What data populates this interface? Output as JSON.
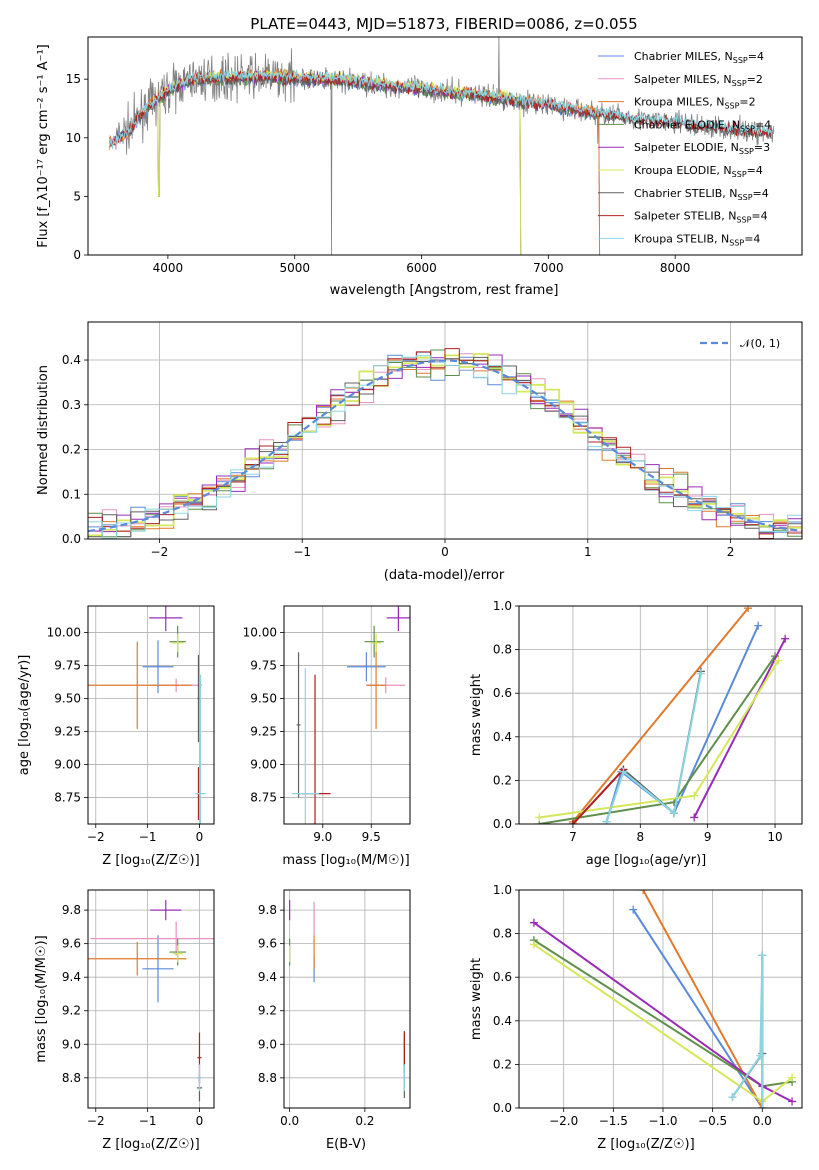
{
  "colors": {
    "Chabrier MILES": "#5b8ad8",
    "Salpeter MILES": "#e891c0",
    "Kroupa MILES": "#e07a2c",
    "Chabrier ELODIE": "#5f8f4a",
    "Salpeter ELODIE": "#9a2bb8",
    "Kroupa ELODIE": "#d4e85a",
    "Chabrier STELIB": "#606060",
    "Salpeter STELIB": "#b02020",
    "Kroupa STELIB": "#8ad6e0",
    "normal": "#5b8ad8"
  },
  "chart_data": [
    {
      "id": "spectrum",
      "type": "line",
      "title": "PLATE=0443, MJD=51873, FIBERID=0086, z=0.055",
      "xlabel": "wavelength [Angstrom, rest frame]",
      "ylabel": "Flux [f_λ10⁻¹⁷ erg cm⁻² s⁻¹ A⁻¹]",
      "xlim": [
        3370,
        9000
      ],
      "ylim": [
        0,
        18.6
      ],
      "xticks": [
        "4000",
        "5000",
        "6000",
        "7000",
        "8000"
      ],
      "yticks": [
        "0",
        "5",
        "10",
        "15"
      ],
      "grid": false,
      "legend_position": "top-right",
      "legend": [
        {
          "name": "Chabrier MILES, N_SSP=4",
          "text": "Chabrier MILES, N",
          "sub": "SSP",
          "rest": "=4"
        },
        {
          "name": "Salpeter MILES, N_SSP=2",
          "text": "Salpeter MILES, N",
          "sub": "SSP",
          "rest": "=2"
        },
        {
          "name": "Kroupa MILES, N_SSP=2",
          "text": "Kroupa MILES, N",
          "sub": "SSP",
          "rest": "=2"
        },
        {
          "name": "Chabrier ELODIE, N_SSP=4",
          "text": "Chabrier ELODIE, N",
          "sub": "SSP",
          "rest": "=4"
        },
        {
          "name": "Salpeter ELODIE, N_SSP=3",
          "text": "Salpeter ELODIE, N",
          "sub": "SSP",
          "rest": "=3"
        },
        {
          "name": "Kroupa ELODIE, N_SSP=4",
          "text": "Kroupa ELODIE, N",
          "sub": "SSP",
          "rest": "=4"
        },
        {
          "name": "Chabrier STELIB, N_SSP=4",
          "text": "Chabrier STELIB, N",
          "sub": "SSP",
          "rest": "=4"
        },
        {
          "name": "Salpeter STELIB, N_SSP=4",
          "text": "Salpeter STELIB, N",
          "sub": "SSP",
          "rest": "=4"
        },
        {
          "name": "Kroupa STELIB, N_SSP=4",
          "text": "Kroupa STELIB, N",
          "sub": "SSP",
          "rest": "=4"
        }
      ],
      "continuum_wavelength": [
        3600,
        3700,
        3800,
        3900,
        4000,
        4100,
        4200,
        4400,
        4600,
        4800,
        5000,
        5200,
        5400,
        5600,
        5800,
        6000,
        6200,
        6400,
        6600,
        6800,
        7000,
        7200,
        7400,
        7600,
        7800,
        8000,
        8200,
        8400,
        8600,
        8800
      ],
      "continuum_flux": [
        9.9,
        10.8,
        12.2,
        13.2,
        14.0,
        14.6,
        15.0,
        15.1,
        15.2,
        15.2,
        15.1,
        15.0,
        14.9,
        14.6,
        14.4,
        14.2,
        13.9,
        13.7,
        13.4,
        13.1,
        12.8,
        12.4,
        12.1,
        11.8,
        11.5,
        11.3,
        11.0,
        10.8,
        10.6,
        10.4
      ],
      "model_ranges": {
        "Chabrier MILES": [
          3540,
          7410
        ],
        "Salpeter MILES": [
          3540,
          7410
        ],
        "Kroupa MILES": [
          3540,
          7410
        ],
        "Chabrier ELODIE": [
          3860,
          6800
        ],
        "Salpeter ELODIE": [
          3860,
          6800
        ],
        "Kroupa ELODIE": [
          3860,
          6800
        ],
        "Chabrier STELIB": [
          3540,
          8760
        ],
        "Salpeter STELIB": [
          3540,
          8760
        ],
        "Kroupa STELIB": [
          3540,
          8760
        ]
      }
    },
    {
      "id": "residuals",
      "type": "histogram",
      "xlabel": "(data-model)/error",
      "ylabel": "Normed distribution",
      "xlim": [
        -2.5,
        2.5
      ],
      "ylim": [
        0,
        0.485
      ],
      "xticks": [
        "−2",
        "−1",
        "0",
        "1",
        "2"
      ],
      "yticks": [
        "0.0",
        "0.1",
        "0.2",
        "0.3",
        "0.4"
      ],
      "grid": true,
      "legend_position": "top-right",
      "reference": {
        "name": "𝒩(0, 1)",
        "mean": 0,
        "sigma": 1
      }
    },
    {
      "id": "age-vs-Z",
      "type": "errorbar",
      "xlabel": "Z [log₁₀(Z/Z☉)]",
      "ylabel": "age  [log₁₀(age/yr)]",
      "xlim": [
        -2.15,
        0.28
      ],
      "ylim": [
        8.55,
        10.2
      ],
      "xticks": [
        "−2",
        "−1",
        "0"
      ],
      "yticks": [
        "8.75",
        "9.00",
        "9.25",
        "9.50",
        "9.75",
        "10.00"
      ],
      "grid": true,
      "points": [
        {
          "model": "Chabrier MILES",
          "x": -0.8,
          "xerr": 0.3,
          "y": 9.74,
          "yerr": 0.2
        },
        {
          "model": "Salpeter MILES",
          "x": -0.45,
          "xerr": 0.5,
          "y": 9.6,
          "yerr": 0.05
        },
        {
          "model": "Kroupa MILES",
          "x": -1.2,
          "xerr": 1.05,
          "y": 9.6,
          "yerr": 0.33
        },
        {
          "model": "Chabrier ELODIE",
          "x": -0.42,
          "xerr": 0.16,
          "y": 9.93,
          "yerr": 0.12
        },
        {
          "model": "Salpeter ELODIE",
          "x": -0.65,
          "xerr": 0.32,
          "y": 10.11,
          "yerr": 0.1
        },
        {
          "model": "Kroupa ELODIE",
          "x": -0.42,
          "xerr": 0.12,
          "y": 9.92,
          "yerr": 0.07
        },
        {
          "model": "Chabrier STELIB",
          "x": -0.02,
          "xerr": 0.02,
          "y": 9.5,
          "yerr": 0.33
        },
        {
          "model": "Salpeter STELIB",
          "x": -0.02,
          "xerr": 0.02,
          "y": 8.78,
          "yerr": 0.2
        },
        {
          "model": "Kroupa STELIB",
          "x": 0.02,
          "xerr": 0.1,
          "y": 8.78,
          "yerr": 0.9
        }
      ]
    },
    {
      "id": "age-vs-mass",
      "type": "errorbar",
      "xlabel": "mass [log₁₀(M/M☉)]",
      "ylabel": "",
      "xlim": [
        8.6,
        9.9
      ],
      "ylim": [
        8.55,
        10.2
      ],
      "xticks": [
        "9.0",
        "9.5"
      ],
      "yticks": [
        "8.75",
        "9.00",
        "9.25",
        "9.50",
        "9.75",
        "10.00"
      ],
      "grid": true,
      "points": [
        {
          "model": "Chabrier MILES",
          "x": 9.45,
          "xerr": 0.2,
          "y": 9.74,
          "yerr": 0.11
        },
        {
          "model": "Salpeter MILES",
          "x": 9.65,
          "xerr": 0.2,
          "y": 9.6,
          "yerr": 0.06
        },
        {
          "model": "Kroupa MILES",
          "x": 9.55,
          "xerr": 0.1,
          "y": 9.6,
          "yerr": 0.33
        },
        {
          "model": "Chabrier ELODIE",
          "x": 9.53,
          "xerr": 0.1,
          "y": 9.93,
          "yerr": 0.12
        },
        {
          "model": "Salpeter ELODIE",
          "x": 9.78,
          "xerr": 0.12,
          "y": 10.11,
          "yerr": 0.1
        },
        {
          "model": "Kroupa ELODIE",
          "x": 9.55,
          "xerr": 0.05,
          "y": 9.92,
          "yerr": 0.07
        },
        {
          "model": "Chabrier STELIB",
          "x": 8.75,
          "xerr": 0.02,
          "y": 9.3,
          "yerr": 0.55
        },
        {
          "model": "Salpeter STELIB",
          "x": 8.92,
          "xerr": 0.16,
          "y": 8.78,
          "yerr": 0.9
        },
        {
          "model": "Kroupa STELIB",
          "x": 8.82,
          "xerr": 0.14,
          "y": 8.78,
          "yerr": 0.95
        }
      ]
    },
    {
      "id": "mass-weight-vs-age",
      "type": "line",
      "xlabel": "age  [log₁₀(age/yr)]",
      "ylabel": "mass weight",
      "xlim": [
        6.2,
        10.4
      ],
      "ylim": [
        0,
        1
      ],
      "xticks": [
        "7",
        "8",
        "9",
        "10"
      ],
      "yticks": [
        "0.0",
        "0.2",
        "0.4",
        "0.6",
        "0.8",
        "1.0"
      ],
      "grid": true,
      "series": [
        {
          "model": "Chabrier MILES",
          "x": [
            7.5,
            7.72,
            8.5,
            9.75
          ],
          "y": [
            0.01,
            0.24,
            0.05,
            0.91
          ]
        },
        {
          "model": "Kroupa MILES",
          "x": [
            7.0,
            9.6
          ],
          "y": [
            0.01,
            0.99
          ]
        },
        {
          "model": "Chabrier ELODIE",
          "x": [
            6.5,
            8.5,
            10.0
          ],
          "y": [
            0.0,
            0.1,
            0.77
          ]
        },
        {
          "model": "Salpeter ELODIE",
          "x": [
            8.8,
            10.15
          ],
          "y": [
            0.03,
            0.85
          ]
        },
        {
          "model": "Kroupa ELODIE",
          "x": [
            6.5,
            8.8,
            10.05
          ],
          "y": [
            0.03,
            0.13,
            0.75
          ]
        },
        {
          "model": "Chabrier STELIB",
          "x": [
            7.0,
            7.75,
            8.5,
            8.9
          ],
          "y": [
            0.0,
            0.25,
            0.05,
            0.7
          ]
        },
        {
          "model": "Salpeter STELIB",
          "x": [
            7.0,
            7.75
          ],
          "y": [
            0.0,
            0.25
          ]
        },
        {
          "model": "Kroupa STELIB",
          "x": [
            7.5,
            7.75,
            8.5,
            8.9
          ],
          "y": [
            0.01,
            0.24,
            0.05,
            0.69
          ]
        }
      ]
    },
    {
      "id": "mass-vs-Z",
      "type": "errorbar",
      "xlabel": "Z [log₁₀(Z/Z☉)]",
      "ylabel": "mass [log₁₀(M/M☉)]",
      "xlim": [
        -2.15,
        0.28
      ],
      "ylim": [
        8.62,
        9.92
      ],
      "xticks": [
        "−2",
        "−1",
        "0"
      ],
      "yticks": [
        "8.8",
        "9.0",
        "9.2",
        "9.4",
        "9.6",
        "9.8"
      ],
      "grid": true,
      "points": [
        {
          "model": "Chabrier MILES",
          "x": -0.8,
          "xerr": 0.3,
          "y": 9.45,
          "yerr": 0.2
        },
        {
          "model": "Salpeter MILES",
          "x": -0.45,
          "xerr": 1.65,
          "y": 9.63,
          "yerr": 0.1
        },
        {
          "model": "Kroupa MILES",
          "x": -1.2,
          "xerr": 0.95,
          "y": 9.51,
          "yerr": 0.1
        },
        {
          "model": "Chabrier ELODIE",
          "x": -0.42,
          "xerr": 0.16,
          "y": 9.55,
          "yerr": 0.08
        },
        {
          "model": "Salpeter ELODIE",
          "x": -0.65,
          "xerr": 0.3,
          "y": 9.8,
          "yerr": 0.06
        },
        {
          "model": "Kroupa ELODIE",
          "x": -0.42,
          "xerr": 0.1,
          "y": 9.54,
          "yerr": 0.05
        },
        {
          "model": "Chabrier STELIB",
          "x": 0.0,
          "xerr": 0.05,
          "y": 8.74,
          "yerr": 0.08
        },
        {
          "model": "Salpeter STELIB",
          "x": 0.0,
          "xerr": 0.04,
          "y": 8.92,
          "yerr": 0.15
        },
        {
          "model": "Kroupa STELIB",
          "x": 0.0,
          "xerr": 0.05,
          "y": 8.8,
          "yerr": 0.08
        }
      ]
    },
    {
      "id": "mass-vs-EBV",
      "type": "errorbar",
      "xlabel": "E(B-V)",
      "ylabel": "",
      "xlim": [
        -0.015,
        0.32
      ],
      "ylim": [
        8.62,
        9.92
      ],
      "xticks": [
        "0.0",
        "0.2"
      ],
      "yticks": [
        "8.8",
        "9.0",
        "9.2",
        "9.4",
        "9.6",
        "9.8"
      ],
      "grid": true,
      "points": [
        {
          "model": "Chabrier MILES",
          "x": 0.065,
          "xerr": 0.0,
          "y": 9.45,
          "yerr": 0.08
        },
        {
          "model": "Salpeter MILES",
          "x": 0.065,
          "xerr": 0.0,
          "y": 9.75,
          "yerr": 0.1
        },
        {
          "model": "Kroupa MILES",
          "x": 0.065,
          "xerr": 0.0,
          "y": 9.55,
          "yerr": 0.1
        },
        {
          "model": "Chabrier ELODIE",
          "x": 0.0,
          "xerr": 0.0,
          "y": 9.55,
          "yerr": 0.08
        },
        {
          "model": "Salpeter ELODIE",
          "x": 0.0,
          "xerr": 0.0,
          "y": 9.8,
          "yerr": 0.06
        },
        {
          "model": "Kroupa ELODIE",
          "x": 0.0,
          "xerr": 0.0,
          "y": 9.54,
          "yerr": 0.05
        },
        {
          "model": "Chabrier STELIB",
          "x": 0.305,
          "xerr": 0.0,
          "y": 8.88,
          "yerr": 0.2
        },
        {
          "model": "Salpeter STELIB",
          "x": 0.305,
          "xerr": 0.0,
          "y": 8.95,
          "yerr": 0.12
        },
        {
          "model": "Kroupa STELIB",
          "x": 0.305,
          "xerr": 0.0,
          "y": 8.8,
          "yerr": 0.08
        }
      ]
    },
    {
      "id": "mass-weight-vs-Z",
      "type": "line",
      "xlabel": "Z [log₁₀(Z/Z☉)]",
      "ylabel": "mass weight",
      "xlim": [
        -2.45,
        0.4
      ],
      "ylim": [
        0,
        1
      ],
      "xticks": [
        "−2.0",
        "−1.5",
        "−1.0",
        "−0.5",
        "0.0"
      ],
      "yticks": [
        "0.0",
        "0.2",
        "0.4",
        "0.6",
        "0.8",
        "1.0"
      ],
      "grid": true,
      "series": [
        {
          "model": "Chabrier MILES",
          "x": [
            -1.3,
            0.0
          ],
          "y": [
            0.91,
            0.0
          ]
        },
        {
          "model": "Kroupa MILES",
          "x": [
            -1.2,
            0.0
          ],
          "y": [
            1.0,
            0.0
          ]
        },
        {
          "model": "Chabrier ELODIE",
          "x": [
            -2.3,
            0.0,
            0.3
          ],
          "y": [
            0.77,
            0.1,
            0.12
          ]
        },
        {
          "model": "Salpeter ELODIE",
          "x": [
            -2.3,
            0.0,
            0.3
          ],
          "y": [
            0.85,
            0.1,
            0.03
          ]
        },
        {
          "model": "Kroupa ELODIE",
          "x": [
            -2.3,
            0.0,
            0.3
          ],
          "y": [
            0.75,
            0.03,
            0.14
          ]
        },
        {
          "model": "Chabrier STELIB",
          "x": [
            -0.3,
            0.0,
            0.0,
            0.0
          ],
          "y": [
            0.05,
            0.25,
            0.7,
            0.0
          ]
        },
        {
          "model": "Kroupa STELIB",
          "x": [
            -0.3,
            -0.02,
            0.0,
            0.0
          ],
          "y": [
            0.05,
            0.24,
            0.7,
            0.0
          ]
        }
      ]
    }
  ]
}
